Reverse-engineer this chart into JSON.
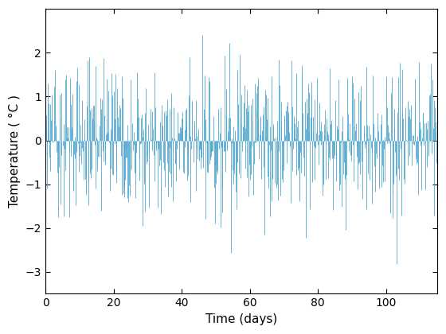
{
  "title": "",
  "xlabel": "Time (days)",
  "ylabel": "Temperature ( °C )",
  "xlim": [
    0,
    115
  ],
  "ylim": [
    -3.5,
    3.0
  ],
  "yticks": [
    -3,
    -2,
    -1,
    0,
    1,
    2
  ],
  "xticks": [
    0,
    20,
    40,
    60,
    80,
    100
  ],
  "line_color": "#4da6cf",
  "line_width": 0.7,
  "n_points": 700,
  "seed": 37,
  "background_color": "#ffffff",
  "figure_facecolor": "#ffffff"
}
